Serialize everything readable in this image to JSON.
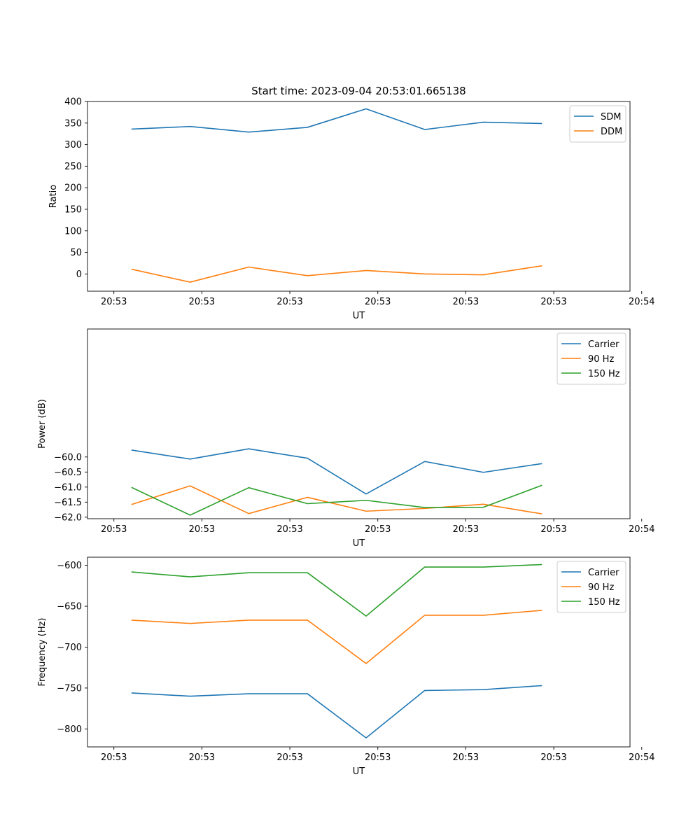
{
  "title": "Start time: 2023-09-04 20:53:01.665138",
  "chart_data": [
    {
      "type": "line",
      "xlabel": "UT",
      "ylabel": "Ratio",
      "xlim": [
        -0.45,
        8.8
      ],
      "ylim": [
        -40,
        400
      ],
      "x": [
        0.3,
        1.3,
        2.3,
        3.3,
        4.3,
        5.3,
        6.3,
        7.3
      ],
      "xticks": [
        0,
        1.5,
        3,
        4.5,
        6,
        7.5,
        9
      ],
      "xtick_labels": [
        "20:53",
        "20:53",
        "20:53",
        "20:53",
        "20:53",
        "20:53",
        "20:54"
      ],
      "yticks": [
        0,
        50,
        100,
        150,
        200,
        250,
        300,
        350,
        400
      ],
      "ytick_labels": [
        "0",
        "50",
        "100",
        "150",
        "200",
        "250",
        "300",
        "350",
        "400"
      ],
      "legend_position": "top-right",
      "series": [
        {
          "name": "SDM",
          "color": "#1f77b4",
          "values": [
            336,
            342,
            329,
            340,
            383,
            335,
            352,
            349
          ]
        },
        {
          "name": "DDM",
          "color": "#ff7f0e",
          "values": [
            11,
            -19,
            16,
            -4,
            8,
            0,
            -2,
            19
          ]
        }
      ]
    },
    {
      "type": "line",
      "xlabel": "UT",
      "ylabel": "Power (dB)",
      "xlim": [
        -0.45,
        8.8
      ],
      "ylim": [
        -62.05,
        -55.75
      ],
      "x": [
        0.3,
        1.3,
        2.3,
        3.3,
        4.3,
        5.3,
        6.3,
        7.3
      ],
      "xticks": [
        0,
        1.5,
        3,
        4.5,
        6,
        7.5,
        9
      ],
      "xtick_labels": [
        "20:53",
        "20:53",
        "20:53",
        "20:53",
        "20:53",
        "20:53",
        "20:54"
      ],
      "yticks": [
        -62.0,
        -61.5,
        -61.0,
        -60.5,
        -60.0
      ],
      "ytick_labels": [
        "−62.0",
        "−61.5",
        "−61.0",
        "−60.5",
        "−60.0"
      ],
      "legend_position": "top-right",
      "series": [
        {
          "name": "Carrier",
          "color": "#1f77b4",
          "values": [
            -59.77,
            -60.07,
            -59.73,
            -60.04,
            -61.23,
            -60.15,
            -60.51,
            -60.22
          ]
        },
        {
          "name": "90 Hz",
          "color": "#ff7f0e",
          "values": [
            -61.58,
            -60.96,
            -61.88,
            -61.34,
            -61.8,
            -61.71,
            -61.57,
            -61.89
          ]
        },
        {
          "name": "150 Hz",
          "color": "#2ca02c",
          "values": [
            -61.01,
            -61.93,
            -61.02,
            -61.55,
            -61.44,
            -61.68,
            -61.67,
            -60.94
          ]
        }
      ]
    },
    {
      "type": "line",
      "xlabel": "UT",
      "ylabel": "Frequency (Hz)",
      "xlim": [
        -0.45,
        8.8
      ],
      "ylim": [
        -822,
        -590
      ],
      "x": [
        0.3,
        1.3,
        2.3,
        3.3,
        4.3,
        5.3,
        6.3,
        7.3
      ],
      "xticks": [
        0,
        1.5,
        3,
        4.5,
        6,
        7.5,
        9
      ],
      "xtick_labels": [
        "20:53",
        "20:53",
        "20:53",
        "20:53",
        "20:53",
        "20:53",
        "20:54"
      ],
      "yticks": [
        -800,
        -750,
        -700,
        -650,
        -600
      ],
      "ytick_labels": [
        "−800",
        "−750",
        "−700",
        "−650",
        "−600"
      ],
      "legend_position": "top-right",
      "series": [
        {
          "name": "Carrier",
          "color": "#1f77b4",
          "values": [
            -756,
            -760,
            -757,
            -757,
            -811,
            -753,
            -752,
            -747
          ]
        },
        {
          "name": "90 Hz",
          "color": "#ff7f0e",
          "values": [
            -667,
            -671,
            -667,
            -667,
            -720,
            -661,
            -661,
            -655
          ]
        },
        {
          "name": "150 Hz",
          "color": "#2ca02c",
          "values": [
            -608,
            -614,
            -609,
            -609,
            -662,
            -602,
            -602,
            -599
          ]
        }
      ]
    }
  ]
}
